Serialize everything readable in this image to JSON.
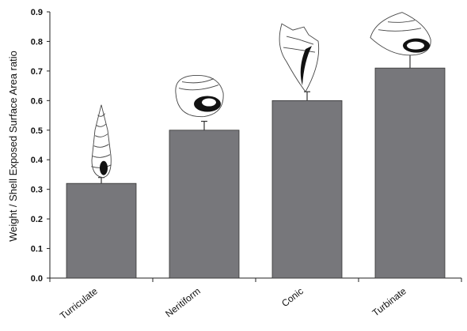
{
  "chart_data": {
    "type": "bar",
    "categories": [
      "Turriculate",
      "Neritiform",
      "Conic",
      "Turbinate"
    ],
    "values": [
      0.32,
      0.5,
      0.6,
      0.71
    ],
    "error_bars": [
      0.02,
      0.03,
      0.03,
      0.06
    ],
    "xlabel": "",
    "ylabel": "Weight / Shell Exposed Surface Area ratio",
    "ylim": [
      0,
      0.9
    ],
    "yticks": [
      "0.0",
      "0.1",
      "0.2",
      "0.3",
      "0.4",
      "0.5",
      "0.6",
      "0.7",
      "0.8",
      "0.9"
    ],
    "grid": false,
    "legend": "none",
    "bar_color": "#77777b",
    "shell_illustrations": [
      "turriculate-shell",
      "neritiform-shell",
      "conic-shell",
      "turbinate-shell"
    ]
  }
}
